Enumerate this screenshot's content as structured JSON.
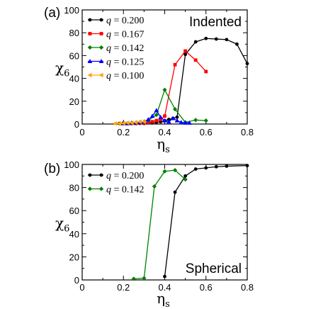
{
  "chart_data": [
    {
      "type": "line",
      "panel_label": "(a)",
      "annotation": "Indented",
      "ylabel": "χ",
      "ylabel_sub": "6",
      "xlabel": "η",
      "xlabel_sub": "s",
      "xlim": [
        0,
        0.8
      ],
      "ylim": [
        0,
        100
      ],
      "xticks": [
        "0",
        "0.2",
        "0.4",
        "0.6",
        "0.8"
      ],
      "yticks": [
        "0",
        "20",
        "40",
        "60",
        "80",
        "100"
      ],
      "legend_position": "top-left",
      "series": [
        {
          "name": "q = 0.200",
          "q_label": "q",
          "q_value": "= 0.200",
          "color": "#000000",
          "marker": "circle",
          "x": [
            0.18,
            0.2,
            0.22,
            0.24,
            0.26,
            0.28,
            0.3,
            0.32,
            0.34,
            0.36,
            0.38,
            0.4,
            0.42,
            0.44,
            0.46,
            0.5,
            0.55,
            0.6,
            0.65,
            0.7,
            0.75,
            0.8
          ],
          "y": [
            0.5,
            0.5,
            0.5,
            0.5,
            0.5,
            0.5,
            0.5,
            1,
            1,
            1.5,
            2,
            3,
            4,
            5,
            6,
            61,
            72,
            75,
            74.5,
            74,
            70,
            53
          ]
        },
        {
          "name": "q = 0.167",
          "q_label": "q",
          "q_value": "= 0.167",
          "color": "#ff0000",
          "marker": "square",
          "x": [
            0.2,
            0.22,
            0.24,
            0.26,
            0.28,
            0.3,
            0.32,
            0.34,
            0.36,
            0.38,
            0.4,
            0.45,
            0.5,
            0.55,
            0.6
          ],
          "y": [
            0.5,
            0.5,
            0.5,
            0.5,
            1,
            1,
            1.5,
            2,
            3,
            4,
            7,
            52,
            64,
            56,
            46
          ]
        },
        {
          "name": "q = 0.142",
          "q_label": "q",
          "q_value": "= 0.142",
          "color": "#008000",
          "marker": "diamond",
          "x": [
            0.2,
            0.24,
            0.28,
            0.32,
            0.36,
            0.4,
            0.45,
            0.5,
            0.55,
            0.6
          ],
          "y": [
            0.5,
            0.5,
            1.5,
            3,
            8,
            30,
            13,
            1.5,
            3.5,
            3
          ]
        },
        {
          "name": "q = 0.125",
          "q_label": "q",
          "q_value": "= 0.125",
          "color": "#0000ff",
          "marker": "triangle",
          "x": [
            0.2,
            0.22,
            0.24,
            0.26,
            0.28,
            0.3,
            0.32,
            0.34,
            0.36,
            0.38,
            0.4,
            0.42,
            0.44,
            0.46,
            0.48,
            0.5,
            0.52
          ],
          "y": [
            0.5,
            0.5,
            1,
            1,
            1.5,
            2,
            4,
            7,
            12,
            6,
            3,
            2,
            5,
            3,
            1.5,
            1,
            1
          ]
        },
        {
          "name": "q = 0.100",
          "q_label": "q",
          "q_value": "= 0.100",
          "color": "#ffa500",
          "marker": "left-triangle",
          "x": [
            0.16,
            0.18,
            0.2,
            0.22,
            0.24,
            0.26,
            0.28,
            0.3
          ],
          "y": [
            0.5,
            0.5,
            0.5,
            1,
            1,
            1.5,
            2,
            2
          ]
        }
      ]
    },
    {
      "type": "line",
      "panel_label": "(b)",
      "annotation": "Spherical",
      "ylabel": "χ",
      "ylabel_sub": "6",
      "xlabel": "η",
      "xlabel_sub": "s",
      "xlim": [
        0,
        0.8
      ],
      "ylim": [
        0,
        100
      ],
      "xticks": [
        "0",
        "0.2",
        "0.4",
        "0.6",
        "0.8"
      ],
      "yticks": [
        "0",
        "20",
        "40",
        "60",
        "80",
        "100"
      ],
      "legend_position": "top-left",
      "series": [
        {
          "name": "q = 0.200",
          "q_label": "q",
          "q_value": "= 0.200",
          "color": "#000000",
          "marker": "circle",
          "x": [
            0.4,
            0.45,
            0.5,
            0.55,
            0.6,
            0.65,
            0.7,
            0.8
          ],
          "y": [
            3,
            76,
            90,
            96,
            97,
            98,
            98.5,
            99
          ]
        },
        {
          "name": "q = 0.142",
          "q_label": "q",
          "q_value": "= 0.142",
          "color": "#008000",
          "marker": "diamond",
          "x": [
            0.25,
            0.3,
            0.35,
            0.4,
            0.45,
            0.5
          ],
          "y": [
            1,
            1.5,
            81,
            94,
            95,
            87
          ]
        }
      ]
    }
  ]
}
